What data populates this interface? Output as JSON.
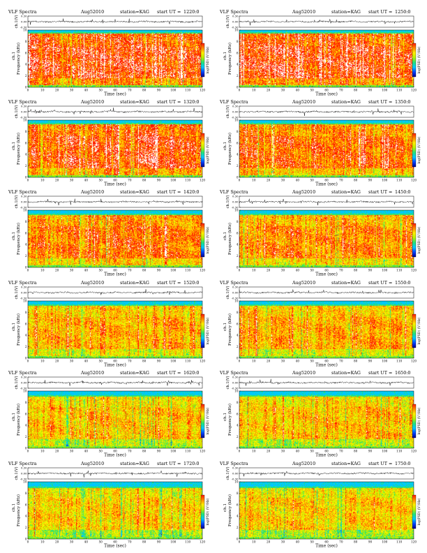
{
  "figure": {
    "header": {
      "title": "VLF Spectra",
      "date": "Aug52010",
      "station": "station=KAG",
      "start_label": "start UT ="
    },
    "axis_labels": {
      "waveform_ylabel": "ch.1(V)",
      "waveform_yticks": [
        "0.30",
        "0.00",
        "-0.30"
      ],
      "spectrogram_ylabel_top": "ch.1",
      "spectrogram_ylabel": "Frequency (kHz)",
      "xlabel": "Time (sec)",
      "colorbar_label": "log(PSD) (V²/Hz)"
    },
    "colors": {
      "spectrum_ramp": [
        "#00008b",
        "#0044ff",
        "#00c8ff",
        "#22e27a",
        "#b6f000",
        "#ffee00",
        "#ff8800",
        "#ff1a00",
        "#ffffff"
      ]
    }
  },
  "chart_data": [
    {
      "type": "heatmap",
      "title": "VLF Spectra",
      "date": "Aug52010",
      "station": "station=KAG",
      "start_ut": "1220:0",
      "xlabel": "Time (sec)",
      "ylabel": "Frequency (kHz)",
      "waveform_ylabel": "ch.1(V)",
      "waveform_ylim": [
        -0.3,
        0.3
      ],
      "xlim": [
        0,
        120
      ],
      "ylim": [
        0,
        10
      ],
      "x_ticks": [
        0,
        10,
        20,
        30,
        40,
        50,
        60,
        70,
        80,
        90,
        100,
        110,
        120
      ],
      "y_ticks": [
        0,
        2,
        4,
        6,
        8,
        10
      ],
      "intensity": 0.88,
      "band_top_khz": 9.4
    },
    {
      "type": "heatmap",
      "title": "VLF Spectra",
      "date": "Aug52010",
      "station": "station=KAG",
      "start_ut": "1250:0",
      "xlabel": "Time (sec)",
      "ylabel": "Frequency (kHz)",
      "waveform_ylabel": "ch.1(V)",
      "waveform_ylim": [
        -0.3,
        0.3
      ],
      "xlim": [
        0,
        120
      ],
      "ylim": [
        0,
        10
      ],
      "x_ticks": [
        0,
        10,
        20,
        30,
        40,
        50,
        60,
        70,
        80,
        90,
        100,
        110,
        120
      ],
      "y_ticks": [
        0,
        2,
        4,
        6,
        8,
        10
      ],
      "intensity": 0.9,
      "band_top_khz": 9.4
    },
    {
      "type": "heatmap",
      "title": "VLF Spectra",
      "date": "Aug52010",
      "station": "station=KAG",
      "start_ut": "1320:0",
      "xlabel": "Time (sec)",
      "ylabel": "Frequency (kHz)",
      "waveform_ylabel": "ch.1(V)",
      "waveform_ylim": [
        -0.3,
        0.3
      ],
      "xlim": [
        0,
        120
      ],
      "ylim": [
        0,
        10
      ],
      "x_ticks": [
        0,
        10,
        20,
        30,
        40,
        50,
        60,
        70,
        80,
        90,
        100,
        110,
        120
      ],
      "y_ticks": [
        0,
        2,
        4,
        6,
        8,
        10
      ],
      "intensity": 0.85,
      "band_top_khz": 9.3
    },
    {
      "type": "heatmap",
      "title": "VLF Spectra",
      "date": "Aug52010",
      "station": "station=KAG",
      "start_ut": "1350:0",
      "xlabel": "Time (sec)",
      "ylabel": "Frequency (kHz)",
      "waveform_ylabel": "ch.1(V)",
      "waveform_ylim": [
        -0.3,
        0.3
      ],
      "xlim": [
        0,
        120
      ],
      "ylim": [
        0,
        10
      ],
      "x_ticks": [
        0,
        10,
        20,
        30,
        40,
        50,
        60,
        70,
        80,
        90,
        100,
        110,
        120
      ],
      "y_ticks": [
        0,
        2,
        4,
        6,
        8,
        10
      ],
      "intensity": 0.78,
      "band_top_khz": 9.3
    },
    {
      "type": "heatmap",
      "title": "VLF Spectra",
      "date": "Aug52010",
      "station": "station=KAG",
      "start_ut": "1420:0",
      "xlabel": "Time (sec)",
      "ylabel": "Frequency (kHz)",
      "waveform_ylabel": "ch.1(V)",
      "waveform_ylim": [
        -0.3,
        0.3
      ],
      "xlim": [
        0,
        120
      ],
      "ylim": [
        0,
        10
      ],
      "x_ticks": [
        0,
        10,
        20,
        30,
        40,
        50,
        60,
        70,
        80,
        90,
        100,
        110,
        120
      ],
      "y_ticks": [
        0,
        2,
        4,
        6,
        8,
        10
      ],
      "intensity": 0.74,
      "band_top_khz": 9.2
    },
    {
      "type": "heatmap",
      "title": "VLF Spectra",
      "date": "Aug52010",
      "station": "station=KAG",
      "start_ut": "1450:0",
      "xlabel": "Time (sec)",
      "ylabel": "Frequency (kHz)",
      "waveform_ylabel": "ch.1(V)",
      "waveform_ylim": [
        -0.3,
        0.3
      ],
      "xlim": [
        0,
        120
      ],
      "ylim": [
        0,
        10
      ],
      "x_ticks": [
        0,
        10,
        20,
        30,
        40,
        50,
        60,
        70,
        80,
        90,
        100,
        110,
        120
      ],
      "y_ticks": [
        0,
        2,
        4,
        6,
        8,
        10
      ],
      "intensity": 0.7,
      "band_top_khz": 9.2
    },
    {
      "type": "heatmap",
      "title": "VLF Spectra",
      "date": "Aug52010",
      "station": "station=KAG",
      "start_ut": "1520:0",
      "xlabel": "Time (sec)",
      "ylabel": "Frequency (kHz)",
      "waveform_ylabel": "ch.1(V)",
      "waveform_ylim": [
        -0.3,
        0.3
      ],
      "xlim": [
        0,
        120
      ],
      "ylim": [
        0,
        10
      ],
      "x_ticks": [
        0,
        10,
        20,
        30,
        40,
        50,
        60,
        70,
        80,
        90,
        100,
        110,
        120
      ],
      "y_ticks": [
        0,
        2,
        4,
        6,
        8,
        10
      ],
      "intensity": 0.64,
      "band_top_khz": 9.1
    },
    {
      "type": "heatmap",
      "title": "VLF Spectra",
      "date": "Aug52010",
      "station": "station=KAG",
      "start_ut": "1550:0",
      "xlabel": "Time (sec)",
      "ylabel": "Frequency (kHz)",
      "waveform_ylabel": "ch.1(V)",
      "waveform_ylim": [
        -0.3,
        0.3
      ],
      "xlim": [
        0,
        120
      ],
      "ylim": [
        0,
        10
      ],
      "x_ticks": [
        0,
        10,
        20,
        30,
        40,
        50,
        60,
        70,
        80,
        90,
        100,
        110,
        120
      ],
      "y_ticks": [
        0,
        2,
        4,
        6,
        8,
        10
      ],
      "intensity": 0.62,
      "band_top_khz": 9.1
    },
    {
      "type": "heatmap",
      "title": "VLF Spectra",
      "date": "Aug52010",
      "station": "station=KAG",
      "start_ut": "1620:0",
      "xlabel": "Time (sec)",
      "ylabel": "Frequency (kHz)",
      "waveform_ylabel": "ch.1(V)",
      "waveform_ylim": [
        -0.3,
        0.3
      ],
      "xlim": [
        0,
        120
      ],
      "ylim": [
        0,
        10
      ],
      "x_ticks": [
        0,
        10,
        20,
        30,
        40,
        50,
        60,
        70,
        80,
        90,
        100,
        110,
        120
      ],
      "y_ticks": [
        0,
        2,
        4,
        6,
        8,
        10
      ],
      "intensity": 0.55,
      "band_top_khz": 9.0
    },
    {
      "type": "heatmap",
      "title": "VLF Spectra",
      "date": "Aug52010",
      "station": "station=KAG",
      "start_ut": "1650:0",
      "xlabel": "Time (sec)",
      "ylabel": "Frequency (kHz)",
      "waveform_ylabel": "ch.1(V)",
      "waveform_ylim": [
        -0.3,
        0.3
      ],
      "xlim": [
        0,
        120
      ],
      "ylim": [
        0,
        10
      ],
      "x_ticks": [
        0,
        10,
        20,
        30,
        40,
        50,
        60,
        70,
        80,
        90,
        100,
        110,
        120
      ],
      "y_ticks": [
        0,
        2,
        4,
        6,
        8,
        10
      ],
      "intensity": 0.58,
      "band_top_khz": 9.0
    },
    {
      "type": "heatmap",
      "title": "VLF Spectra",
      "date": "Aug52010",
      "station": "station=KAG",
      "start_ut": "1720:0",
      "xlabel": "Time (sec)",
      "ylabel": "Frequency (kHz)",
      "waveform_ylabel": "ch.1(V)",
      "waveform_ylim": [
        -0.3,
        0.3
      ],
      "xlim": [
        0,
        120
      ],
      "ylim": [
        0,
        10
      ],
      "x_ticks": [
        0,
        10,
        20,
        30,
        40,
        50,
        60,
        70,
        80,
        90,
        100,
        110,
        120
      ],
      "y_ticks": [
        0,
        2,
        4,
        6,
        8,
        10
      ],
      "intensity": 0.5,
      "band_top_khz": 8.9
    },
    {
      "type": "heatmap",
      "title": "VLF Spectra",
      "date": "Aug52010",
      "station": "station=KAG",
      "start_ut": "1750:0",
      "xlabel": "Time (sec)",
      "ylabel": "Frequency (kHz)",
      "waveform_ylabel": "ch.1(V)",
      "waveform_ylim": [
        -0.3,
        0.3
      ],
      "xlim": [
        0,
        120
      ],
      "ylim": [
        0,
        10
      ],
      "x_ticks": [
        0,
        10,
        20,
        30,
        40,
        50,
        60,
        70,
        80,
        90,
        100,
        110,
        120
      ],
      "y_ticks": [
        0,
        2,
        4,
        6,
        8,
        10
      ],
      "intensity": 0.5,
      "band_top_khz": 8.9
    }
  ]
}
